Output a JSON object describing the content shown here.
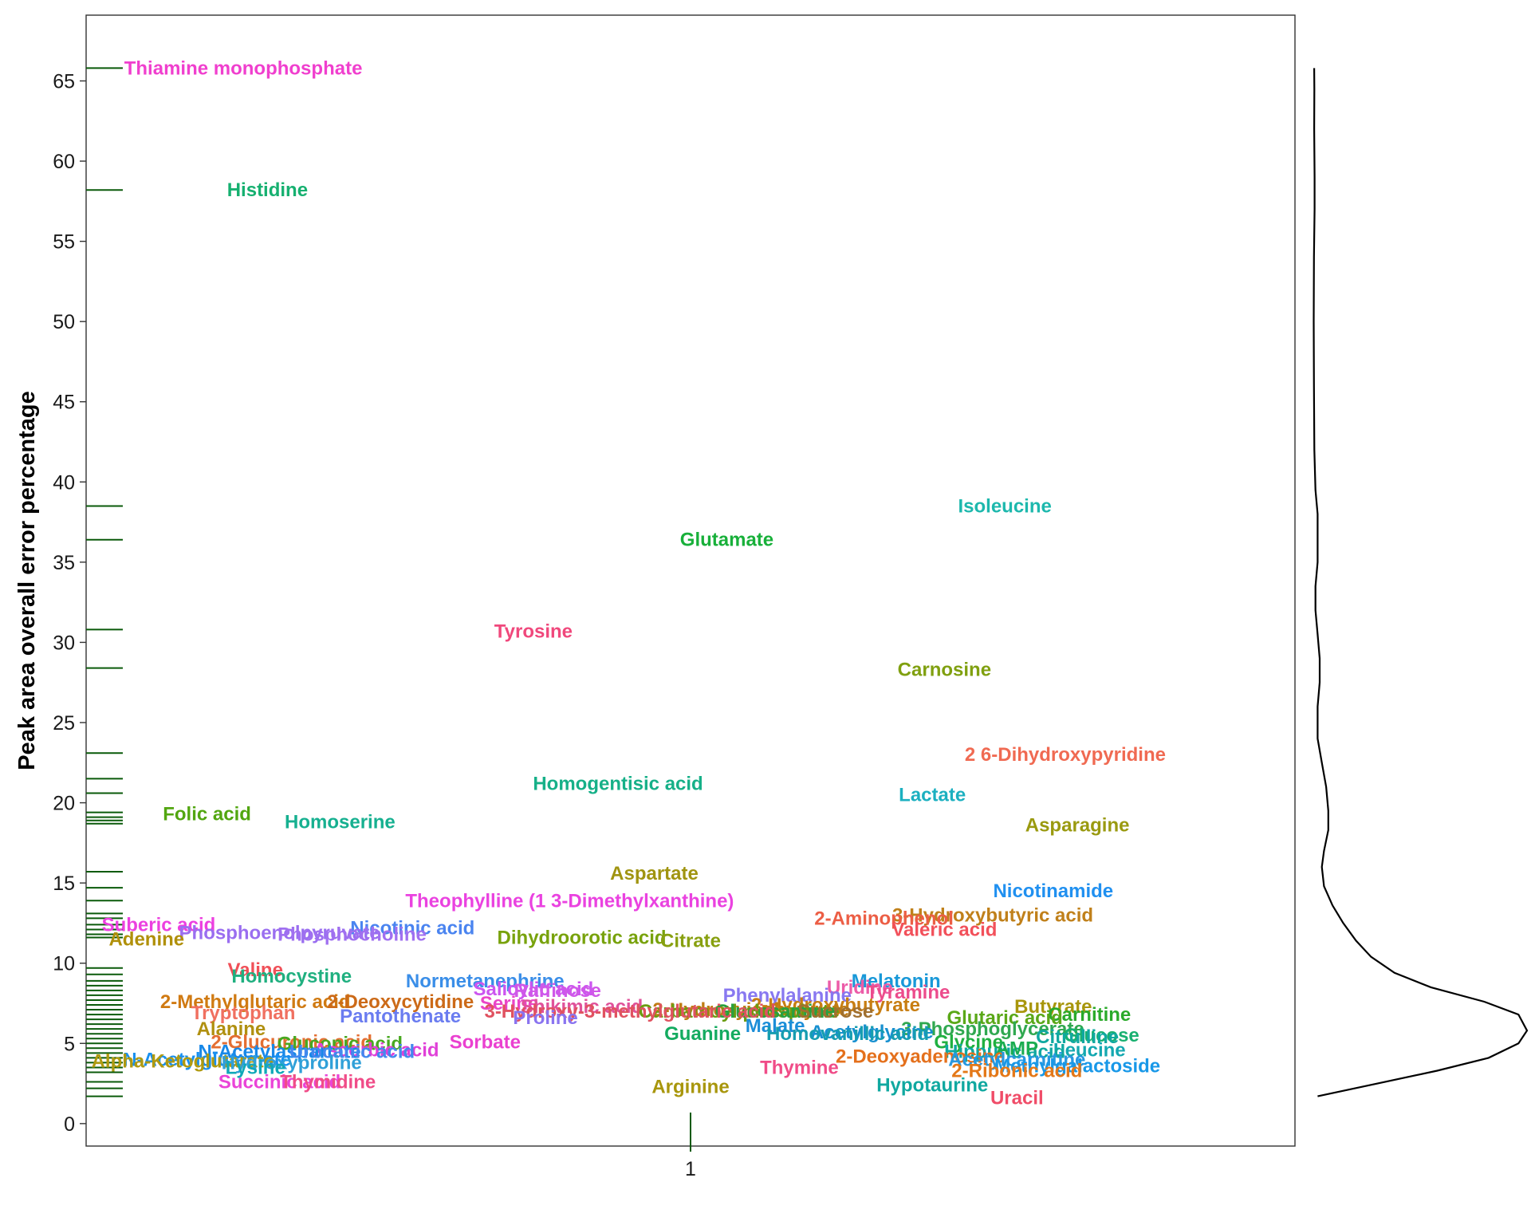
{
  "chart_data": {
    "type": "scatter",
    "title": "",
    "xlabel": "",
    "ylabel": "Peak area overall error percentage",
    "x_ticks": [
      "1"
    ],
    "y_ticks": [
      0,
      5,
      10,
      15,
      20,
      25,
      30,
      35,
      40,
      45,
      50,
      55,
      60,
      65
    ],
    "ylim": [
      -1.4,
      69.1
    ],
    "grid": false,
    "legend": "none",
    "marginal_rug": "left",
    "marginal_density": "right",
    "points": [
      {
        "label": "Thiamine monophosphate",
        "x": 0.63,
        "y": 65.8,
        "color": "#f03fce"
      },
      {
        "label": "Histidine",
        "x": 0.65,
        "y": 58.2,
        "color": "#16b070"
      },
      {
        "label": "Isoleucine",
        "x": 1.26,
        "y": 38.5,
        "color": "#1db8ad"
      },
      {
        "label": "Glutamate",
        "x": 1.03,
        "y": 36.4,
        "color": "#18b03a"
      },
      {
        "label": "Tyrosine",
        "x": 0.87,
        "y": 30.7,
        "color": "#f0487c"
      },
      {
        "label": "Carnosine",
        "x": 1.21,
        "y": 28.3,
        "color": "#80a010"
      },
      {
        "label": "2 6-Dihydroxypyridine",
        "x": 1.31,
        "y": 23.0,
        "color": "#f06a52"
      },
      {
        "label": "Homogentisic acid",
        "x": 0.94,
        "y": 21.2,
        "color": "#16b088"
      },
      {
        "label": "Lactate",
        "x": 1.2,
        "y": 20.5,
        "color": "#1cb0c0"
      },
      {
        "label": "Folic acid",
        "x": 0.6,
        "y": 19.3,
        "color": "#52a610"
      },
      {
        "label": "Homoserine",
        "x": 0.71,
        "y": 18.8,
        "color": "#16b090"
      },
      {
        "label": "Asparagine",
        "x": 1.32,
        "y": 18.6,
        "color": "#9a9a10"
      },
      {
        "label": "Aspartate",
        "x": 0.97,
        "y": 15.6,
        "color": "#a09410"
      },
      {
        "label": "Nicotinamide",
        "x": 1.3,
        "y": 14.5,
        "color": "#2090f0"
      },
      {
        "label": "Theophylline (1 3-Dimethylxanthine)",
        "x": 0.9,
        "y": 13.9,
        "color": "#ea42e0"
      },
      {
        "label": "3-Hydroxybutyric acid",
        "x": 1.25,
        "y": 13.0,
        "color": "#c0801a"
      },
      {
        "label": "2-Aminophenol",
        "x": 1.16,
        "y": 12.8,
        "color": "#ec5e45"
      },
      {
        "label": "Suberic acid",
        "x": 0.56,
        "y": 12.4,
        "color": "#ec40e0"
      },
      {
        "label": "Nicotinic acid",
        "x": 0.77,
        "y": 12.2,
        "color": "#4a84f0"
      },
      {
        "label": "Valeric acid",
        "x": 1.21,
        "y": 12.1,
        "color": "#f2505a"
      },
      {
        "label": "Phosphoenolpyruvate",
        "x": 0.66,
        "y": 11.9,
        "color": "#9a6ef0"
      },
      {
        "label": "Phosphocholine",
        "x": 0.72,
        "y": 11.8,
        "color": "#a070f0"
      },
      {
        "label": "Dihydroorotic acid",
        "x": 0.91,
        "y": 11.6,
        "color": "#78a20c"
      },
      {
        "label": "Adenine",
        "x": 0.55,
        "y": 11.5,
        "color": "#b0900a"
      },
      {
        "label": "Citrate",
        "x": 1.0,
        "y": 11.4,
        "color": "#88a010"
      },
      {
        "label": "Valine",
        "x": 0.64,
        "y": 9.6,
        "color": "#f05058"
      },
      {
        "label": "Homocystine",
        "x": 0.67,
        "y": 9.2,
        "color": "#20b080"
      },
      {
        "label": "Melatonin",
        "x": 1.17,
        "y": 8.9,
        "color": "#1898d8"
      },
      {
        "label": "Normetanephrine",
        "x": 0.83,
        "y": 8.9,
        "color": "#3a8ee8"
      },
      {
        "label": "Salicylic acid",
        "x": 0.87,
        "y": 8.4,
        "color": "#cc55f0"
      },
      {
        "label": "Raffinose",
        "x": 0.89,
        "y": 8.3,
        "color": "#d058e8"
      },
      {
        "label": "Uridine",
        "x": 1.14,
        "y": 8.5,
        "color": "#ec5ca8"
      },
      {
        "label": "Tyramine",
        "x": 1.18,
        "y": 8.2,
        "color": "#ec4c8c"
      },
      {
        "label": "Phenylalanine",
        "x": 1.08,
        "y": 8.0,
        "color": "#8878f0"
      },
      {
        "label": "2-Methylglutaric acid",
        "x": 0.64,
        "y": 7.6,
        "color": "#d07a12"
      },
      {
        "label": "2-Deoxycytidine",
        "x": 0.76,
        "y": 7.6,
        "color": "#cc6a18"
      },
      {
        "label": "Serine",
        "x": 0.85,
        "y": 7.5,
        "color": "#ea44c8"
      },
      {
        "label": "Shikimic acid",
        "x": 0.91,
        "y": 7.3,
        "color": "#e0529a"
      },
      {
        "label": "2-Hydroxybutyrate",
        "x": 1.12,
        "y": 7.4,
        "color": "#c87e12"
      },
      {
        "label": "Butyrate",
        "x": 1.3,
        "y": 7.3,
        "color": "#a8960c"
      },
      {
        "label": "2-Hydroxyisobutyrate",
        "x": 1.05,
        "y": 7.1,
        "color": "#c07c14"
      },
      {
        "label": "Carbamoyl phosphate",
        "x": 1.04,
        "y": 7.0,
        "color": "#6a9c10"
      },
      {
        "label": "Glucosamine",
        "x": 1.07,
        "y": 7.0,
        "color": "#28a040"
      },
      {
        "label": "3-Hydroxy-3-methylglutaric acid",
        "x": 0.95,
        "y": 7.0,
        "color": "#e05260"
      },
      {
        "label": "Sucrose",
        "x": 1.12,
        "y": 7.0,
        "color": "#a07030"
      },
      {
        "label": "Tryptophan",
        "x": 0.63,
        "y": 6.9,
        "color": "#f07060"
      },
      {
        "label": "Carnitine",
        "x": 1.33,
        "y": 6.8,
        "color": "#2aaa2a"
      },
      {
        "label": "Pantothenate",
        "x": 0.76,
        "y": 6.7,
        "color": "#6a7cf0"
      },
      {
        "label": "Proline",
        "x": 0.88,
        "y": 6.6,
        "color": "#8a74f0"
      },
      {
        "label": "Glutaric acid",
        "x": 1.26,
        "y": 6.6,
        "color": "#5aa818"
      },
      {
        "label": "Malate",
        "x": 1.07,
        "y": 6.1,
        "color": "#1c8ed8"
      },
      {
        "label": "3-Phosphoglycerate",
        "x": 1.25,
        "y": 5.9,
        "color": "#30a850"
      },
      {
        "label": "Alanine",
        "x": 0.62,
        "y": 5.9,
        "color": "#b09010"
      },
      {
        "label": "Acetylglycine",
        "x": 1.15,
        "y": 5.7,
        "color": "#1890d0"
      },
      {
        "label": "Homovanillic acid",
        "x": 1.13,
        "y": 5.6,
        "color": "#169db0"
      },
      {
        "label": "Guanine",
        "x": 1.01,
        "y": 5.6,
        "color": "#14ab60"
      },
      {
        "label": "Glucose",
        "x": 1.34,
        "y": 5.5,
        "color": "#18b070"
      },
      {
        "label": "Citrulline",
        "x": 1.32,
        "y": 5.4,
        "color": "#10a8a0"
      },
      {
        "label": "Glycine",
        "x": 1.23,
        "y": 5.1,
        "color": "#20b040"
      },
      {
        "label": "2-Glucuronic acid",
        "x": 0.67,
        "y": 5.1,
        "color": "#e46e32"
      },
      {
        "label": "Sorbate",
        "x": 0.83,
        "y": 5.1,
        "color": "#ea40d0"
      },
      {
        "label": "Gluconic acid",
        "x": 0.71,
        "y": 5.0,
        "color": "#48a820"
      },
      {
        "label": "Leucine",
        "x": 1.33,
        "y": 4.6,
        "color": "#14a8b0"
      },
      {
        "label": "Hippuric acid",
        "x": 1.26,
        "y": 4.5,
        "color": "#10a8a0"
      },
      {
        "label": "AMP",
        "x": 1.27,
        "y": 4.7,
        "color": "#1aac50"
      },
      {
        "label": "Ascorbic acid",
        "x": 0.74,
        "y": 4.6,
        "color": "#e040d8"
      },
      {
        "label": "N-Acetylaspartate",
        "x": 0.66,
        "y": 4.5,
        "color": "#1888e8"
      },
      {
        "label": "Urocanic acid",
        "x": 0.72,
        "y": 4.5,
        "color": "#4488ee"
      },
      {
        "label": "2-Deoxyadenosine",
        "x": 1.19,
        "y": 4.2,
        "color": "#e4701c"
      },
      {
        "label": "Acetylcarnitine",
        "x": 1.27,
        "y": 4.0,
        "color": "#2898e0"
      },
      {
        "label": "Methylgalactoside",
        "x": 1.32,
        "y": 3.6,
        "color": "#1898e8"
      },
      {
        "label": "N-Acetylglutamate",
        "x": 0.6,
        "y": 4.0,
        "color": "#1890f0"
      },
      {
        "label": "Alpha-Ketoglutarate",
        "x": 0.58,
        "y": 3.9,
        "color": "#b09a10"
      },
      {
        "label": "Hydroxyproline",
        "x": 0.67,
        "y": 3.8,
        "color": "#30a0d8"
      },
      {
        "label": "Lysine",
        "x": 0.64,
        "y": 3.5,
        "color": "#10a8b8"
      },
      {
        "label": "Thymine",
        "x": 1.09,
        "y": 3.5,
        "color": "#f04c88"
      },
      {
        "label": "2-Ribonic acid",
        "x": 1.27,
        "y": 3.3,
        "color": "#e47818"
      },
      {
        "label": "Succinic acid",
        "x": 0.66,
        "y": 2.6,
        "color": "#ea44d8"
      },
      {
        "label": "Thymidine",
        "x": 0.7,
        "y": 2.6,
        "color": "#f04c88"
      },
      {
        "label": "Hypotaurine",
        "x": 1.2,
        "y": 2.4,
        "color": "#10a8a0"
      },
      {
        "label": "Arginine",
        "x": 1.0,
        "y": 2.3,
        "color": "#a8960c"
      },
      {
        "label": "Uracil",
        "x": 1.27,
        "y": 1.6,
        "color": "#f04c68"
      }
    ],
    "rug_values": [
      65.8,
      58.2,
      38.5,
      36.4,
      30.8,
      28.4,
      23.1,
      21.5,
      20.6,
      19.4,
      19.1,
      18.9,
      18.7,
      15.7,
      14.7,
      13.9,
      13.1,
      12.8,
      12.4,
      12.1,
      11.8,
      11.6,
      9.7,
      9.3,
      8.9,
      8.6,
      8.3,
      8.0,
      7.7,
      7.4,
      7.1,
      6.8,
      6.5,
      6.2,
      5.9,
      5.6,
      5.3,
      5.0,
      4.7,
      4.4,
      4.1,
      3.8,
      3.5,
      3.2,
      2.6,
      2.2,
      1.7
    ],
    "density_curve": [
      {
        "y": 1.7,
        "d": 0.02
      },
      {
        "y": 2.5,
        "d": 0.3
      },
      {
        "y": 3.3,
        "d": 0.58
      },
      {
        "y": 4.1,
        "d": 0.82
      },
      {
        "y": 5.0,
        "d": 0.96
      },
      {
        "y": 5.8,
        "d": 1.0
      },
      {
        "y": 6.8,
        "d": 0.96
      },
      {
        "y": 7.6,
        "d": 0.8
      },
      {
        "y": 8.5,
        "d": 0.55
      },
      {
        "y": 9.4,
        "d": 0.38
      },
      {
        "y": 10.4,
        "d": 0.27
      },
      {
        "y": 11.4,
        "d": 0.2
      },
      {
        "y": 12.5,
        "d": 0.14
      },
      {
        "y": 13.6,
        "d": 0.09
      },
      {
        "y": 14.8,
        "d": 0.05
      },
      {
        "y": 16.0,
        "d": 0.04
      },
      {
        "y": 17.0,
        "d": 0.05
      },
      {
        "y": 18.3,
        "d": 0.07
      },
      {
        "y": 19.5,
        "d": 0.07
      },
      {
        "y": 21.0,
        "d": 0.06
      },
      {
        "y": 22.5,
        "d": 0.04
      },
      {
        "y": 24.0,
        "d": 0.02
      },
      {
        "y": 26.0,
        "d": 0.02
      },
      {
        "y": 27.5,
        "d": 0.03
      },
      {
        "y": 29.0,
        "d": 0.03
      },
      {
        "y": 30.5,
        "d": 0.02
      },
      {
        "y": 32.0,
        "d": 0.01
      },
      {
        "y": 33.5,
        "d": 0.01
      },
      {
        "y": 35.0,
        "d": 0.02
      },
      {
        "y": 36.5,
        "d": 0.02
      },
      {
        "y": 38.0,
        "d": 0.02
      },
      {
        "y": 39.5,
        "d": 0.01
      },
      {
        "y": 42.0,
        "d": 0.005
      },
      {
        "y": 46.0,
        "d": 0.003
      },
      {
        "y": 50.0,
        "d": 0.002
      },
      {
        "y": 54.0,
        "d": 0.003
      },
      {
        "y": 57.0,
        "d": 0.006
      },
      {
        "y": 59.0,
        "d": 0.006
      },
      {
        "y": 62.0,
        "d": 0.004
      },
      {
        "y": 64.5,
        "d": 0.005
      },
      {
        "y": 65.8,
        "d": 0.004
      }
    ]
  }
}
